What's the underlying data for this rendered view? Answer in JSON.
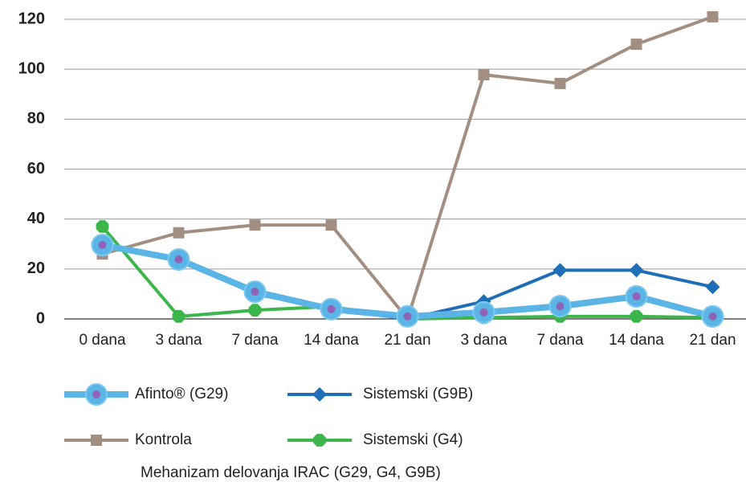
{
  "chart_data": {
    "type": "line",
    "categories": [
      "0 dana",
      "3 dana",
      "7 dana",
      "14 dana",
      "21 dan",
      "3 dana",
      "7 dana",
      "14 dana",
      "21 dan"
    ],
    "series": [
      {
        "name": "Kontrola",
        "color": "#a38f82",
        "marker": "square",
        "values": [
          26,
          34.5,
          37.6,
          37.6,
          0,
          97.8,
          94.3,
          110,
          121
        ]
      },
      {
        "name": "Sistemski (G4)",
        "color": "#3cb54a",
        "marker": "octagon",
        "values": [
          37,
          1,
          3.5,
          5,
          0,
          0.5,
          1,
          1,
          0.5
        ]
      },
      {
        "name": "Sistemski (G9B)",
        "color": "#1f6fb8",
        "marker": "diamond",
        "values": [
          29,
          24,
          10,
          4,
          0,
          7,
          19.5,
          19.5,
          12.8
        ]
      },
      {
        "name": "Afinto® (G29)",
        "color": "#5ab4e6",
        "marker": "circle",
        "values": [
          29.6,
          23.8,
          10.9,
          3.9,
          1,
          2.6,
          5.1,
          9,
          1
        ]
      }
    ],
    "caption": "Mehanizam delovanja IRAC (G29, G4, G9B)",
    "ylim": [
      0,
      120
    ],
    "yticks": [
      0,
      20,
      40,
      60,
      80,
      100,
      120
    ],
    "grid": true
  }
}
